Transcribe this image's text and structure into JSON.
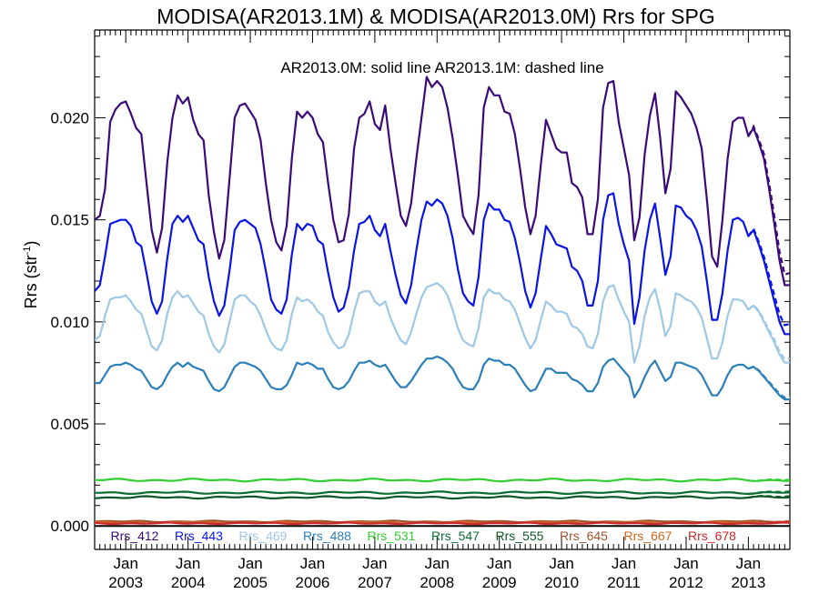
{
  "chart_data": {
    "type": "line",
    "title": "MODISA(AR2013.1M) & MODISA(AR2013.0M)  Rrs for SPG",
    "annotation": "AR2013.0M: solid line   AR2013.1M: dashed line",
    "ylabel": "Rrs (str",
    "ylabel_sup": "-1",
    "ylabel_close": ")",
    "ylim": [
      -0.00115,
      0.0243
    ],
    "y_ticks": [
      "0.000",
      "0.005",
      "0.010",
      "0.015",
      "0.020"
    ],
    "x_range_months": [
      "2002-07",
      "2013-09"
    ],
    "x_ticks": [
      {
        "month": "Jan",
        "year": "2003"
      },
      {
        "month": "Jan",
        "year": "2004"
      },
      {
        "month": "Jan",
        "year": "2005"
      },
      {
        "month": "Jan",
        "year": "2006"
      },
      {
        "month": "Jan",
        "year": "2007"
      },
      {
        "month": "Jan",
        "year": "2008"
      },
      {
        "month": "Jan",
        "year": "2009"
      },
      {
        "month": "Jan",
        "year": "2010"
      },
      {
        "month": "Jan",
        "year": "2011"
      },
      {
        "month": "Jan",
        "year": "2012"
      },
      {
        "month": "Jan",
        "year": "2013"
      }
    ],
    "grid": false,
    "legend_position": "bottom, inside plot",
    "series": [
      {
        "name": "Rrs_412",
        "color": "#3c0a78",
        "dashed_end_offset": 0.0006,
        "years": [
          {
            "year": "2002",
            "jul": 0.015,
            "aug": 0.0152,
            "sep": 0.0165,
            "oct": 0.0198,
            "nov": 0.0204,
            "dec": 0.0207,
            "jan": 0.0208
          },
          {
            "year": "2003",
            "feb": 0.0202,
            "mar": 0.0195,
            "apr": 0.0192,
            "may": 0.0168,
            "jun": 0.0145,
            "jul": 0.0134,
            "aug": 0.0146,
            "sep": 0.0178,
            "oct": 0.02,
            "nov": 0.0211,
            "dec": 0.0207,
            "jan": 0.021
          },
          {
            "year": "2004",
            "feb": 0.0199,
            "mar": 0.0192,
            "apr": 0.0189,
            "may": 0.0162,
            "jun": 0.0144,
            "jul": 0.0131,
            "aug": 0.014,
            "sep": 0.017,
            "oct": 0.02,
            "nov": 0.0206,
            "dec": 0.0207,
            "jan": 0.0203
          },
          {
            "year": "2005",
            "feb": 0.0199,
            "mar": 0.0189,
            "apr": 0.0168,
            "may": 0.015,
            "jun": 0.0139,
            "jul": 0.0135,
            "aug": 0.0147,
            "sep": 0.018,
            "oct": 0.0203,
            "nov": 0.02,
            "dec": 0.0203,
            "jan": 0.02
          },
          {
            "year": "2006",
            "feb": 0.0192,
            "mar": 0.0188,
            "apr": 0.0168,
            "may": 0.015,
            "jun": 0.0139,
            "jul": 0.014,
            "aug": 0.0153,
            "sep": 0.0185,
            "oct": 0.02,
            "nov": 0.0202,
            "dec": 0.0208,
            "jan": 0.0197
          },
          {
            "year": "2007",
            "feb": 0.0194,
            "mar": 0.0206,
            "apr": 0.0185,
            "may": 0.0168,
            "jun": 0.0152,
            "jul": 0.0147,
            "aug": 0.0158,
            "sep": 0.018,
            "oct": 0.02,
            "nov": 0.022,
            "dec": 0.0215,
            "jan": 0.0218
          },
          {
            "year": "2008",
            "feb": 0.0215,
            "mar": 0.0205,
            "apr": 0.019,
            "may": 0.0172,
            "jun": 0.0152,
            "jul": 0.0147,
            "aug": 0.0143,
            "sep": 0.0162,
            "oct": 0.0205,
            "nov": 0.0215,
            "dec": 0.0211,
            "jan": 0.0211
          },
          {
            "year": "2009",
            "feb": 0.0203,
            "mar": 0.0202,
            "apr": 0.0192,
            "may": 0.0175,
            "jun": 0.0156,
            "jul": 0.0143,
            "aug": 0.0152,
            "sep": 0.0177,
            "oct": 0.0199,
            "nov": 0.0192,
            "dec": 0.0185,
            "jan": 0.0183
          },
          {
            "year": "2010",
            "feb": 0.0183,
            "mar": 0.0168,
            "apr": 0.0166,
            "may": 0.0161,
            "jun": 0.0143,
            "jul": 0.0143,
            "aug": 0.016,
            "sep": 0.0205,
            "oct": 0.0217,
            "nov": 0.0218,
            "dec": 0.0198,
            "jan": 0.0185
          },
          {
            "year": "2011",
            "feb": 0.0172,
            "mar": 0.014,
            "apr": 0.0151,
            "may": 0.0182,
            "jun": 0.0201,
            "jul": 0.0212,
            "aug": 0.019,
            "sep": 0.0163,
            "oct": 0.0175,
            "nov": 0.0213,
            "dec": 0.021,
            "jan": 0.0206
          },
          {
            "year": "2012",
            "feb": 0.0202,
            "mar": 0.0195,
            "apr": 0.0185,
            "may": 0.016,
            "jun": 0.0132,
            "jul": 0.0127,
            "aug": 0.015,
            "sep": 0.018,
            "oct": 0.0198,
            "nov": 0.02,
            "dec": 0.02,
            "jan": 0.0191
          },
          {
            "year": "2013",
            "feb": 0.0195,
            "mar": 0.0188,
            "apr": 0.018,
            "may": 0.0165,
            "jun": 0.0148,
            "jul": 0.013,
            "aug": 0.0118
          }
        ]
      },
      {
        "name": "Rrs_443",
        "color": "#0a14e6",
        "dashed_end_offset": 0.0005,
        "years": [
          {
            "year": "2002",
            "jul": 0.0115,
            "aug": 0.0118,
            "sep": 0.0132,
            "oct": 0.0148,
            "nov": 0.0149,
            "dec": 0.015,
            "jan": 0.015
          },
          {
            "year": "2003",
            "feb": 0.0147,
            "mar": 0.0139,
            "apr": 0.0137,
            "may": 0.0124,
            "jun": 0.011,
            "jul": 0.0104,
            "aug": 0.011,
            "sep": 0.0131,
            "oct": 0.0148,
            "nov": 0.0152,
            "dec": 0.0149,
            "jan": 0.0152
          },
          {
            "year": "2004",
            "feb": 0.0146,
            "mar": 0.014,
            "apr": 0.0138,
            "may": 0.0122,
            "jun": 0.011,
            "jul": 0.0103,
            "aug": 0.0108,
            "sep": 0.0125,
            "oct": 0.0145,
            "nov": 0.0149,
            "dec": 0.015,
            "jan": 0.0148
          },
          {
            "year": "2005",
            "feb": 0.0146,
            "mar": 0.0138,
            "apr": 0.0125,
            "may": 0.0111,
            "jun": 0.0106,
            "jul": 0.0104,
            "aug": 0.0111,
            "sep": 0.0133,
            "oct": 0.0148,
            "nov": 0.0145,
            "dec": 0.0148,
            "jan": 0.0147
          },
          {
            "year": "2006",
            "feb": 0.014,
            "mar": 0.0138,
            "apr": 0.0124,
            "may": 0.0112,
            "jun": 0.0105,
            "jul": 0.0107,
            "aug": 0.0117,
            "sep": 0.0135,
            "oct": 0.0148,
            "nov": 0.0149,
            "dec": 0.0152,
            "jan": 0.0145
          },
          {
            "year": "2007",
            "feb": 0.0142,
            "mar": 0.0148,
            "apr": 0.0135,
            "may": 0.0123,
            "jun": 0.0113,
            "jul": 0.0109,
            "aug": 0.0118,
            "sep": 0.0135,
            "oct": 0.015,
            "nov": 0.0159,
            "dec": 0.0157,
            "jan": 0.016
          },
          {
            "year": "2008",
            "feb": 0.0158,
            "mar": 0.0152,
            "apr": 0.0141,
            "may": 0.0126,
            "jun": 0.0114,
            "jul": 0.011,
            "aug": 0.0108,
            "sep": 0.0122,
            "oct": 0.015,
            "nov": 0.0158,
            "dec": 0.0155,
            "jan": 0.0155
          },
          {
            "year": "2009",
            "feb": 0.015,
            "mar": 0.0149,
            "apr": 0.0141,
            "may": 0.0129,
            "jun": 0.0115,
            "jul": 0.0107,
            "aug": 0.0114,
            "sep": 0.0131,
            "oct": 0.0147,
            "nov": 0.0143,
            "dec": 0.0138,
            "jan": 0.0137
          },
          {
            "year": "2010",
            "feb": 0.0136,
            "mar": 0.0127,
            "apr": 0.0125,
            "may": 0.012,
            "jun": 0.0108,
            "jul": 0.0108,
            "aug": 0.012,
            "sep": 0.015,
            "oct": 0.0162,
            "nov": 0.0163,
            "dec": 0.0148,
            "jan": 0.0138
          },
          {
            "year": "2011",
            "feb": 0.013,
            "mar": 0.0099,
            "apr": 0.0112,
            "may": 0.0135,
            "jun": 0.015,
            "jul": 0.0158,
            "aug": 0.0141,
            "sep": 0.0123,
            "oct": 0.0132,
            "nov": 0.0157,
            "dec": 0.0156,
            "jan": 0.0152
          },
          {
            "year": "2012",
            "feb": 0.015,
            "mar": 0.0145,
            "apr": 0.0137,
            "may": 0.012,
            "jun": 0.0101,
            "jul": 0.0101,
            "aug": 0.0114,
            "sep": 0.0135,
            "oct": 0.015,
            "nov": 0.0151,
            "dec": 0.0149,
            "jan": 0.0142
          },
          {
            "year": "2013",
            "feb": 0.0145,
            "mar": 0.0138,
            "apr": 0.013,
            "may": 0.012,
            "jun": 0.011,
            "jul": 0.01,
            "aug": 0.0094
          }
        ]
      },
      {
        "name": "Rrs_469",
        "color": "#9ec8e6",
        "dashed_end_offset": 0.0002,
        "years": [
          {
            "year": "2002",
            "jul": 0.0091,
            "aug": 0.0093,
            "sep": 0.0103,
            "oct": 0.0111,
            "nov": 0.0112,
            "dec": 0.0112,
            "jan": 0.0113
          },
          {
            "year": "2003",
            "feb": 0.011,
            "mar": 0.0106,
            "apr": 0.0104,
            "may": 0.0096,
            "jun": 0.0088,
            "jul": 0.0086,
            "aug": 0.0091,
            "sep": 0.0104,
            "oct": 0.0112,
            "nov": 0.0115,
            "dec": 0.0112,
            "jan": 0.0113
          },
          {
            "year": "2004",
            "feb": 0.0109,
            "mar": 0.0105,
            "apr": 0.0103,
            "may": 0.0094,
            "jun": 0.0088,
            "jul": 0.0085,
            "aug": 0.0089,
            "sep": 0.01,
            "oct": 0.0111,
            "nov": 0.0113,
            "dec": 0.0113,
            "jan": 0.011
          },
          {
            "year": "2005",
            "feb": 0.0108,
            "mar": 0.0103,
            "apr": 0.0096,
            "may": 0.009,
            "jun": 0.0087,
            "jul": 0.0086,
            "aug": 0.0091,
            "sep": 0.0104,
            "oct": 0.0112,
            "nov": 0.011,
            "dec": 0.0111,
            "jan": 0.0109
          },
          {
            "year": "2006",
            "feb": 0.0105,
            "mar": 0.0103,
            "apr": 0.0095,
            "may": 0.009,
            "jun": 0.0087,
            "jul": 0.0088,
            "aug": 0.0094,
            "sep": 0.0105,
            "oct": 0.0114,
            "nov": 0.0115,
            "dec": 0.0115,
            "jan": 0.011
          },
          {
            "year": "2007",
            "feb": 0.0108,
            "mar": 0.011,
            "apr": 0.0102,
            "may": 0.0096,
            "jun": 0.0091,
            "jul": 0.0089,
            "aug": 0.0095,
            "sep": 0.0104,
            "oct": 0.0112,
            "nov": 0.0117,
            "dec": 0.0118,
            "jan": 0.0119
          },
          {
            "year": "2008",
            "feb": 0.0117,
            "mar": 0.0113,
            "apr": 0.0106,
            "may": 0.0097,
            "jun": 0.0091,
            "jul": 0.0089,
            "aug": 0.0088,
            "sep": 0.0097,
            "oct": 0.0112,
            "nov": 0.0116,
            "dec": 0.0114,
            "jan": 0.0114
          },
          {
            "year": "2009",
            "feb": 0.0111,
            "mar": 0.011,
            "apr": 0.0106,
            "may": 0.0099,
            "jun": 0.0092,
            "jul": 0.0087,
            "aug": 0.0091,
            "sep": 0.0101,
            "oct": 0.011,
            "nov": 0.0108,
            "dec": 0.0105,
            "jan": 0.0105
          },
          {
            "year": "2010",
            "feb": 0.0104,
            "mar": 0.0098,
            "apr": 0.0097,
            "may": 0.0094,
            "jun": 0.0088,
            "jul": 0.0087,
            "aug": 0.0094,
            "sep": 0.011,
            "oct": 0.0117,
            "nov": 0.0118,
            "dec": 0.0111,
            "jan": 0.0105
          },
          {
            "year": "2011",
            "feb": 0.01,
            "mar": 0.008,
            "apr": 0.0088,
            "may": 0.0103,
            "jun": 0.0112,
            "jul": 0.0116,
            "aug": 0.0106,
            "sep": 0.0093,
            "oct": 0.0098,
            "nov": 0.0114,
            "dec": 0.0113,
            "jan": 0.0111
          },
          {
            "year": "2012",
            "feb": 0.011,
            "mar": 0.0107,
            "apr": 0.0102,
            "may": 0.0092,
            "jun": 0.0082,
            "jul": 0.0082,
            "aug": 0.009,
            "sep": 0.0103,
            "oct": 0.0111,
            "nov": 0.0111,
            "dec": 0.011,
            "jan": 0.0106
          },
          {
            "year": "2013",
            "feb": 0.0108,
            "mar": 0.0105,
            "apr": 0.01,
            "may": 0.0095,
            "jun": 0.009,
            "jul": 0.0084,
            "aug": 0.008
          }
        ]
      },
      {
        "name": "Rrs_488",
        "color": "#2c7fb8",
        "dashed_end_offset": 0.0001,
        "years": [
          {
            "year": "2002",
            "jul": 0.007,
            "aug": 0.007,
            "sep": 0.0074,
            "oct": 0.0078,
            "nov": 0.0079,
            "dec": 0.0079,
            "jan": 0.008
          },
          {
            "year": "2003",
            "feb": 0.0079,
            "mar": 0.0077,
            "apr": 0.0076,
            "may": 0.0072,
            "jun": 0.0068,
            "jul": 0.0067,
            "aug": 0.0069,
            "sep": 0.0074,
            "oct": 0.0078,
            "nov": 0.008,
            "dec": 0.0078,
            "jan": 0.008
          },
          {
            "year": "2004",
            "feb": 0.0078,
            "mar": 0.0077,
            "apr": 0.0076,
            "may": 0.0071,
            "jun": 0.0067,
            "jul": 0.0066,
            "aug": 0.0068,
            "sep": 0.0073,
            "oct": 0.0078,
            "nov": 0.008,
            "dec": 0.008,
            "jan": 0.0079
          },
          {
            "year": "2005",
            "feb": 0.0078,
            "mar": 0.0076,
            "apr": 0.0072,
            "may": 0.0068,
            "jun": 0.0067,
            "jul": 0.0067,
            "aug": 0.0069,
            "sep": 0.0074,
            "oct": 0.008,
            "nov": 0.0079,
            "dec": 0.008,
            "jan": 0.0079
          },
          {
            "year": "2006",
            "feb": 0.0077,
            "mar": 0.0077,
            "apr": 0.0072,
            "may": 0.0068,
            "jun": 0.0067,
            "jul": 0.0068,
            "aug": 0.0071,
            "sep": 0.0076,
            "oct": 0.008,
            "nov": 0.008,
            "dec": 0.0081,
            "jan": 0.0079
          },
          {
            "year": "2007",
            "feb": 0.0078,
            "mar": 0.0079,
            "apr": 0.0075,
            "may": 0.0071,
            "jun": 0.0068,
            "jul": 0.0068,
            "aug": 0.0071,
            "sep": 0.0075,
            "oct": 0.0079,
            "nov": 0.0082,
            "dec": 0.0082,
            "jan": 0.0083
          },
          {
            "year": "2008",
            "feb": 0.0082,
            "mar": 0.008,
            "apr": 0.0077,
            "may": 0.0072,
            "jun": 0.0068,
            "jul": 0.0067,
            "aug": 0.0067,
            "sep": 0.0071,
            "oct": 0.0079,
            "nov": 0.0082,
            "dec": 0.0081,
            "jan": 0.0081
          },
          {
            "year": "2009",
            "feb": 0.0079,
            "mar": 0.0079,
            "apr": 0.0077,
            "may": 0.0073,
            "jun": 0.0069,
            "jul": 0.0066,
            "aug": 0.0067,
            "sep": 0.0072,
            "oct": 0.0077,
            "nov": 0.0077,
            "dec": 0.0075,
            "jan": 0.0075
          },
          {
            "year": "2010",
            "feb": 0.0075,
            "mar": 0.0072,
            "apr": 0.0071,
            "may": 0.0069,
            "jun": 0.0066,
            "jul": 0.0066,
            "aug": 0.007,
            "sep": 0.0078,
            "oct": 0.0081,
            "nov": 0.0082,
            "dec": 0.0079,
            "jan": 0.0076
          },
          {
            "year": "2011",
            "feb": 0.0073,
            "mar": 0.0063,
            "apr": 0.0067,
            "may": 0.0073,
            "jun": 0.0078,
            "jul": 0.0081,
            "aug": 0.0076,
            "sep": 0.0071,
            "oct": 0.0073,
            "nov": 0.008,
            "dec": 0.008,
            "jan": 0.0079
          },
          {
            "year": "2012",
            "feb": 0.0078,
            "mar": 0.0077,
            "apr": 0.0074,
            "may": 0.0069,
            "jun": 0.0064,
            "jul": 0.0064,
            "aug": 0.0068,
            "sep": 0.0074,
            "oct": 0.0078,
            "nov": 0.0079,
            "dec": 0.0079,
            "jan": 0.0077
          },
          {
            "year": "2013",
            "feb": 0.0078,
            "mar": 0.0076,
            "apr": 0.0073,
            "may": 0.007,
            "jun": 0.0067,
            "jul": 0.0064,
            "aug": 0.0062
          }
        ]
      },
      {
        "name": "Rrs_531",
        "color": "#32cd32",
        "level": 0.00225,
        "amplitude": 7e-05,
        "dashed_end_offset": 5e-05
      },
      {
        "name": "Rrs_547",
        "color": "#0a6e32",
        "level": 0.00163,
        "amplitude": 6e-05,
        "dashed_end_offset": 5e-05
      },
      {
        "name": "Rrs_555",
        "color": "#0d5a28",
        "level": 0.0014,
        "amplitude": 6e-05,
        "dashed_end_offset": 5e-05
      },
      {
        "name": "Rrs_645",
        "color": "#a0522d",
        "level": 0.00022,
        "amplitude": 4e-05,
        "dashed_end_offset": 2e-05
      },
      {
        "name": "Rrs_667",
        "color": "#d2691e",
        "level": 0.00016,
        "amplitude": 4e-05,
        "dashed_end_offset": 2e-05
      },
      {
        "name": "Rrs_678",
        "color": "#c8282d",
        "level": 0.00013,
        "amplitude": 4e-05,
        "dashed_end_offset": 2e-05
      }
    ]
  }
}
